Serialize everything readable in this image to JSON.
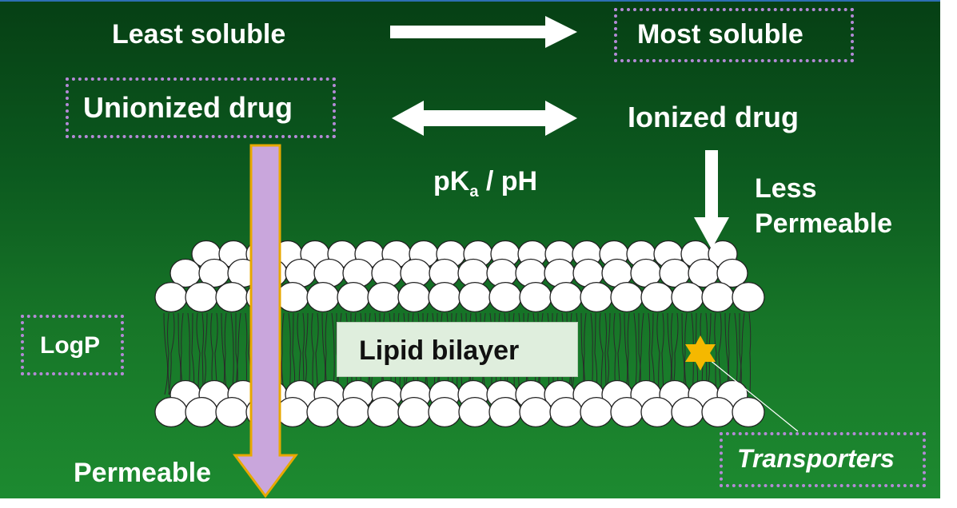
{
  "labels": {
    "least_soluble": "Least soluble",
    "most_soluble": "Most soluble",
    "unionized_drug": "Unionized drug",
    "ionized_drug": "Ionized drug",
    "pka_main": "pK",
    "pka_sub": "a",
    "pka_rest": " / pH",
    "less_permeable": "Less\nPermeable",
    "lipid_bilayer": "Lipid bilayer",
    "logp": "LogP",
    "transporters": "Transporters",
    "permeable": "Permeable"
  },
  "colors": {
    "background_dark": "#063f14",
    "background_light": "#1d8a30",
    "text": "#ffffff",
    "highlight_border": "#b48ad6",
    "permeable_arrow_fill": "#c9a6dc",
    "permeable_arrow_stroke": "#e8a800",
    "transporter_star": "#f5b800",
    "bilayer_label_bg": "#dfeedd"
  },
  "icons": {
    "right_arrow": "right-arrow-icon",
    "double_arrow": "double-arrow-icon",
    "down_arrow": "down-arrow-icon",
    "transporter": "star-icon"
  }
}
